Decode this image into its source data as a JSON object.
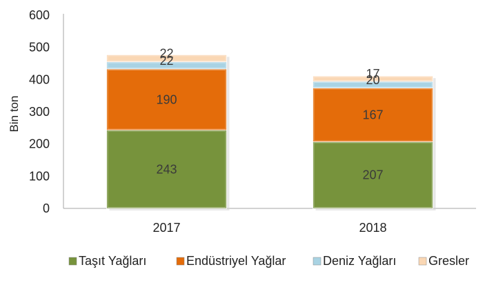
{
  "chart_data": {
    "type": "bar",
    "stacked": true,
    "categories": [
      "2017",
      "2018"
    ],
    "series": [
      {
        "name": "Taşıt Yağları",
        "values": [
          243,
          207
        ],
        "color": "#77933c"
      },
      {
        "name": "Endüstriyel Yağlar",
        "values": [
          190,
          167
        ],
        "color": "#e46c0a"
      },
      {
        "name": "Deniz Yağları",
        "values": [
          22,
          20
        ],
        "color": "#a9d3e3"
      },
      {
        "name": "Gresler",
        "values": [
          22,
          17
        ],
        "color": "#fad7b4"
      }
    ],
    "title": "",
    "xlabel": "",
    "ylabel": "Bin ton",
    "ylim": [
      0,
      600
    ],
    "yticks": [
      "0",
      "100",
      "200",
      "300",
      "400",
      "500",
      "600"
    ],
    "grid": false,
    "legend_position": "bottom"
  }
}
